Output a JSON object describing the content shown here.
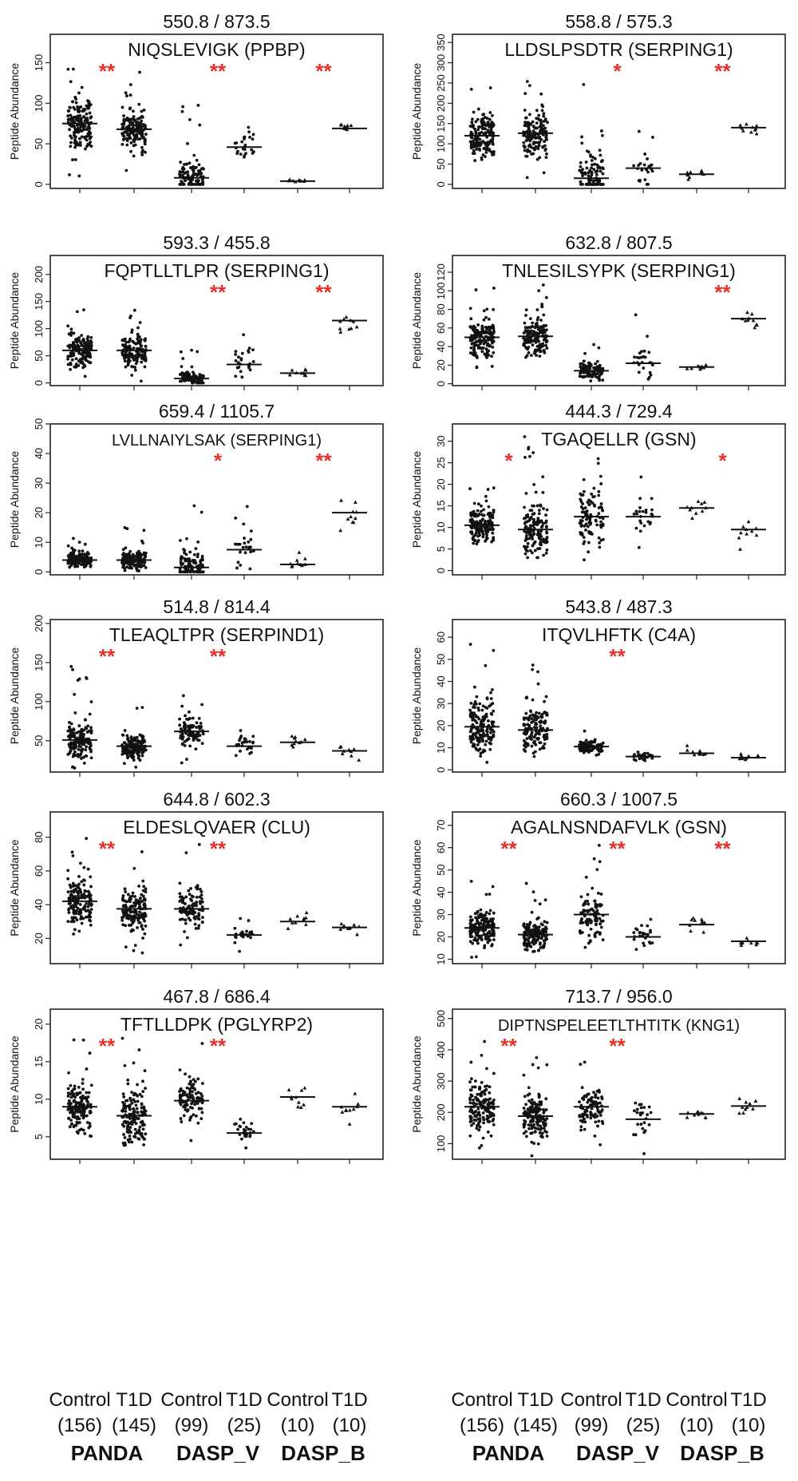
{
  "y_axis_label": "Peptide Abundance",
  "groups": [
    "Control",
    "T1D",
    "Control",
    "T1D",
    "Control",
    "T1D"
  ],
  "counts": [
    "(156)",
    "(145)",
    "(99)",
    "(25)",
    "(10)",
    "(10)"
  ],
  "studies": [
    "PANDA",
    "DASP_V",
    "DASP_B"
  ],
  "colors": {
    "significance": "#e8302a",
    "points": "#111111",
    "frame": "#222222"
  },
  "chart_data": [
    {
      "type": "scatter",
      "title": "550.8 / 873.5",
      "subtitle": "NIQSLEVIGK (PPBP)",
      "ylim": [
        -5,
        185
      ],
      "yticks": [
        0,
        50,
        100,
        150
      ],
      "medians": [
        75,
        68,
        8,
        46,
        4,
        69
      ],
      "spreads": [
        [
          10,
          160
        ],
        [
          15,
          140
        ],
        [
          0,
          100
        ],
        [
          0,
          98
        ],
        [
          0,
          8
        ],
        [
          58,
          80
        ]
      ],
      "significance": [
        "**",
        "**",
        "**"
      ]
    },
    {
      "type": "scatter",
      "title": "558.8 / 575.3",
      "subtitle": "LLDSLPSDTR (SERPING1)",
      "ylim": [
        -10,
        370
      ],
      "yticks": [
        0,
        50,
        100,
        150,
        200,
        250,
        300,
        350
      ],
      "medians": [
        120,
        126,
        15,
        40,
        25,
        140
      ],
      "spreads": [
        [
          0,
          260
        ],
        [
          10,
          260
        ],
        [
          0,
          290
        ],
        [
          0,
          220
        ],
        [
          0,
          50
        ],
        [
          90,
          170
        ]
      ],
      "significance": [
        "",
        "*",
        "**"
      ]
    },
    {
      "type": "scatter",
      "title": "593.3 / 455.8",
      "subtitle": "FQPTLLTLPR (SERPING1)",
      "ylim": [
        -5,
        235
      ],
      "yticks": [
        0,
        50,
        100,
        150,
        200
      ],
      "medians": [
        60,
        60,
        8,
        34,
        18,
        115
      ],
      "spreads": [
        [
          0,
          145
        ],
        [
          0,
          150
        ],
        [
          0,
          70
        ],
        [
          0,
          150
        ],
        [
          0,
          35
        ],
        [
          75,
          180
        ]
      ],
      "significance": [
        "",
        "**",
        "**"
      ]
    },
    {
      "type": "scatter",
      "title": "632.8 / 807.5",
      "subtitle": "TNLESILSYPK (SERPING1)",
      "ylim": [
        -2,
        138
      ],
      "yticks": [
        0,
        20,
        40,
        60,
        80,
        100,
        120
      ],
      "medians": [
        50,
        51,
        14,
        22,
        18,
        70
      ],
      "spreads": [
        [
          5,
          105
        ],
        [
          10,
          110
        ],
        [
          3,
          48
        ],
        [
          5,
          90
        ],
        [
          8,
          30
        ],
        [
          45,
          100
        ]
      ],
      "significance": [
        "",
        "",
        "**"
      ]
    },
    {
      "type": "scatter",
      "title": "659.4 / 1105.7",
      "subtitle": "LVLLNAIYLSAK (SERPING1)",
      "ylim": [
        -1,
        50
      ],
      "yticks": [
        0,
        10,
        20,
        30,
        40,
        50
      ],
      "medians": [
        4,
        4,
        1.5,
        7.5,
        2.5,
        20
      ],
      "spreads": [
        [
          0,
          12
        ],
        [
          0,
          15
        ],
        [
          0,
          25
        ],
        [
          0,
          27
        ],
        [
          0,
          7
        ],
        [
          10,
          36
        ]
      ],
      "significance": [
        "",
        "*",
        "**"
      ]
    },
    {
      "type": "scatter",
      "title": "444.3 / 729.4",
      "subtitle": "TGAQELLR (GSN)",
      "ylim": [
        -1,
        34
      ],
      "yticks": [
        0,
        5,
        10,
        15,
        20,
        25,
        30
      ],
      "medians": [
        10.5,
        9.5,
        12.5,
        12.5,
        14.5,
        9.5
      ],
      "spreads": [
        [
          2,
          21
        ],
        [
          3,
          35
        ],
        [
          0.5,
          36
        ],
        [
          3,
          23
        ],
        [
          6,
          20
        ],
        [
          4,
          12
        ]
      ],
      "significance": [
        "*",
        "",
        "*"
      ]
    },
    {
      "type": "scatter",
      "title": "514.8 / 814.4",
      "subtitle": "TLEAQLTPR (SERPIND1)",
      "ylim": [
        10,
        205
      ],
      "yticks": [
        50,
        100,
        150,
        200
      ],
      "medians": [
        51,
        43,
        62,
        43,
        48,
        37
      ],
      "spreads": [
        [
          15,
          150
        ],
        [
          15,
          95
        ],
        [
          20,
          120
        ],
        [
          20,
          85
        ],
        [
          25,
          70
        ],
        [
          25,
          45
        ]
      ],
      "significance": [
        "**",
        "**",
        ""
      ]
    },
    {
      "type": "scatter",
      "title": "543.8 / 487.3",
      "subtitle": "ITQVLHFTK (C4A)",
      "ylim": [
        -1,
        68
      ],
      "yticks": [
        0,
        10,
        20,
        30,
        40,
        50,
        60
      ],
      "medians": [
        19.5,
        18,
        10.5,
        6,
        7.5,
        5.5
      ],
      "spreads": [
        [
          2,
          61
        ],
        [
          1,
          48
        ],
        [
          3,
          20
        ],
        [
          1,
          13
        ],
        [
          3,
          11
        ],
        [
          3,
          8
        ]
      ],
      "significance": [
        "",
        "**",
        ""
      ]
    },
    {
      "type": "scatter",
      "title": "644.8 / 602.3",
      "subtitle": "ELDESLQVAER (CLU)",
      "ylim": [
        5,
        95
      ],
      "yticks": [
        20,
        40,
        60,
        80
      ],
      "medians": [
        42,
        37.5,
        37.5,
        22,
        30,
        26.5
      ],
      "spreads": [
        [
          12,
          84
        ],
        [
          8,
          72
        ],
        [
          15,
          80
        ],
        [
          12,
          35
        ],
        [
          25,
          43
        ],
        [
          22,
          32
        ]
      ],
      "significance": [
        "**",
        "**",
        ""
      ]
    },
    {
      "type": "scatter",
      "title": "660.3 / 1007.5",
      "subtitle": "AGALNSNDAFVLK (GSN)",
      "ylim": [
        8,
        76
      ],
      "yticks": [
        10,
        20,
        30,
        40,
        50,
        60,
        70
      ],
      "medians": [
        24,
        21,
        30,
        20,
        25.5,
        18
      ],
      "spreads": [
        [
          10,
          45
        ],
        [
          10,
          45
        ],
        [
          11,
          63
        ],
        [
          10,
          37
        ],
        [
          17,
          34
        ],
        [
          12,
          23
        ]
      ],
      "significance": [
        "**",
        "**",
        "**"
      ]
    },
    {
      "type": "scatter",
      "title": "467.8 / 686.4",
      "subtitle": "TFTLLDPK (PGLYRP2)",
      "ylim": [
        2,
        22
      ],
      "yticks": [
        5,
        10,
        15,
        20
      ],
      "medians": [
        9,
        7.8,
        9.8,
        5.5,
        10.3,
        9
      ],
      "spreads": [
        [
          2.8,
          19
        ],
        [
          2.5,
          20
        ],
        [
          3,
          19
        ],
        [
          3,
          10
        ],
        [
          5,
          15
        ],
        [
          6,
          11
        ]
      ],
      "significance": [
        "**",
        "**",
        ""
      ]
    },
    {
      "type": "scatter",
      "title": "713.7 / 956.0",
      "subtitle": "DIPTNSPELEETLTHTITK (KNG1)",
      "ylim": [
        50,
        530
      ],
      "yticks": [
        100,
        200,
        300,
        400,
        500
      ],
      "medians": [
        218,
        188,
        218,
        178,
        195,
        220
      ],
      "spreads": [
        [
          75,
          450
        ],
        [
          50,
          380
        ],
        [
          80,
          380
        ],
        [
          60,
          340
        ],
        [
          150,
          250
        ],
        [
          150,
          320
        ]
      ],
      "significance": [
        "**",
        "**",
        ""
      ]
    }
  ]
}
